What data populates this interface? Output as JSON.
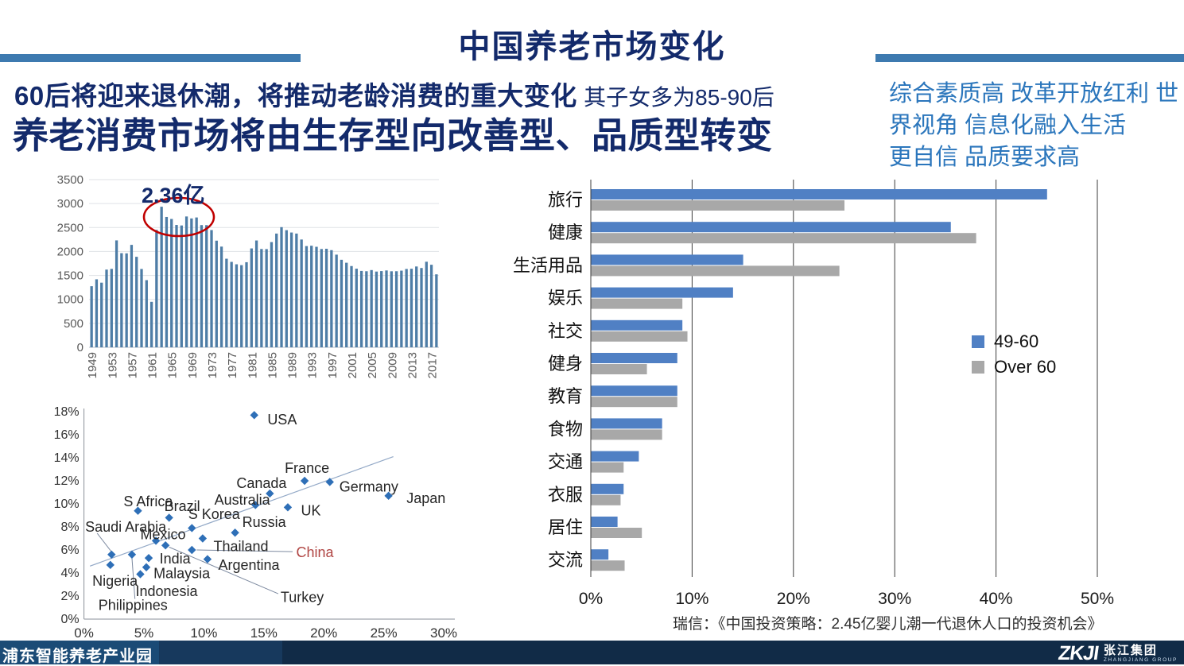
{
  "header": {
    "title": "中国养老市场变化"
  },
  "headline": {
    "bold": "60后将迎来退休潮，将推动老龄消费的重大变化",
    "suffix": "其子女多为85-90后",
    "line2": "养老消费市场将由生存型向改善型、品质型转变"
  },
  "side_note": {
    "lines": [
      "综合素质高 改革开放红利 世",
      "界视角 信息化融入生活",
      "更自信 品质要求高"
    ]
  },
  "source_note": "瑞信：《中国投资策略：2.45亿婴儿潮一代退休人口的投资机会》",
  "footer": {
    "left_text": "浦东智能养老产业园",
    "logo_mark": "ZKJI",
    "logo_cn": "张江集团",
    "logo_en": "ZHANGJIANG GROUP"
  },
  "colors": {
    "headline_navy": "#132a6b",
    "accent_bar_blue": "#3d7ab0",
    "side_note_blue": "#2b76bc",
    "annotation_red": "#c00000"
  },
  "chart_data": [
    {
      "type": "bar",
      "name": "china-annual-births-by-year",
      "start_year": 1949,
      "x_tick_labels": [
        "1949",
        "1953",
        "1957",
        "1961",
        "1965",
        "1969",
        "1973",
        "1977",
        "1981",
        "1985",
        "1989",
        "1993",
        "1997",
        "2001",
        "2005",
        "2009",
        "2013",
        "2017"
      ],
      "ylim": [
        0,
        3500
      ],
      "ytick_step": 500,
      "bar_color": "#4e7da6",
      "grid": true,
      "annotation": {
        "text": "2.36亿",
        "circle_color": "#c00000"
      },
      "values": [
        1275,
        1419,
        1349,
        1622,
        1637,
        2232,
        1965,
        1961,
        2138,
        1889,
        1635,
        1402,
        949,
        2451,
        2934,
        2721,
        2679,
        2554,
        2543,
        2731,
        2690,
        2710,
        2551,
        2550,
        2447,
        2226,
        2102,
        1849,
        1783,
        1733,
        1715,
        1776,
        2064,
        2230,
        2052,
        2050,
        2196,
        2374,
        2508,
        2445,
        2396,
        2374,
        2250,
        2113,
        2120,
        2098,
        2052,
        2057,
        2028,
        1934,
        1827,
        1765,
        1696,
        1641,
        1594,
        1588,
        1612,
        1581,
        1591,
        1604,
        1587,
        1588,
        1600,
        1635,
        1640,
        1687,
        1655,
        1786,
        1723,
        1523
      ]
    },
    {
      "type": "scatter",
      "name": "country-comparison-scatter",
      "xlim": [
        0,
        30
      ],
      "ylim": [
        0,
        18
      ],
      "xtick_step": 5,
      "ytick_step": 2,
      "tick_suffix": "%",
      "grid": false,
      "point_color": "#2e6fb7",
      "highlight_color": "#b04543",
      "trendline": {
        "x1": 0.5,
        "y1": 4.6,
        "x2": 25.8,
        "y2": 14.1
      },
      "points": [
        {
          "name": "USA",
          "x": 14.2,
          "y": 17.7,
          "lx": 15.3,
          "ly": 17.3,
          "anchor": "start"
        },
        {
          "name": "France",
          "x": 18.4,
          "y": 12.0,
          "lx": 18.6,
          "ly": 13.1,
          "anchor": "middle"
        },
        {
          "name": "Canada",
          "x": 15.5,
          "y": 10.9,
          "lx": 16.9,
          "ly": 11.8,
          "anchor": "end"
        },
        {
          "name": "Germany",
          "x": 20.5,
          "y": 11.9,
          "lx": 21.3,
          "ly": 11.5,
          "anchor": "start"
        },
        {
          "name": "Japan",
          "x": 25.4,
          "y": 10.7,
          "lx": 26.9,
          "ly": 10.5,
          "anchor": "start"
        },
        {
          "name": "UK",
          "x": 17.0,
          "y": 9.7,
          "lx": 18.1,
          "ly": 9.4,
          "anchor": "start"
        },
        {
          "name": "Australia",
          "x": 14.3,
          "y": 9.9,
          "lx": 13.2,
          "ly": 10.35,
          "anchor": "middle"
        },
        {
          "name": "S Africa",
          "x": 4.5,
          "y": 9.4,
          "lx": 3.3,
          "ly": 10.2,
          "anchor": "start"
        },
        {
          "name": "Brazil",
          "x": 7.1,
          "y": 8.8,
          "lx": 6.7,
          "ly": 9.8,
          "anchor": "start"
        },
        {
          "name": "S Korea",
          "x": 9.0,
          "y": 7.9,
          "lx": 8.7,
          "ly": 9.1,
          "anchor": "start"
        },
        {
          "name": "Russia",
          "x": 12.6,
          "y": 7.5,
          "lx": 13.2,
          "ly": 8.4,
          "anchor": "start"
        },
        {
          "name": "Mexico",
          "x": 6.0,
          "y": 6.8,
          "lx": 4.7,
          "ly": 7.35,
          "anchor": "start"
        },
        {
          "name": "Thailand",
          "x": 9.9,
          "y": 7.0,
          "lx": 10.8,
          "ly": 6.3,
          "anchor": "start"
        },
        {
          "name": "China",
          "x": 9.0,
          "y": 6.0,
          "lx": 17.7,
          "ly": 5.8,
          "anchor": "start",
          "highlight": true,
          "leader": [
            9.4,
            6.0,
            17.4,
            5.85
          ]
        },
        {
          "name": "Argentina",
          "x": 10.3,
          "y": 5.2,
          "lx": 11.2,
          "ly": 4.7,
          "anchor": "start"
        },
        {
          "name": "India",
          "x": 5.4,
          "y": 5.3,
          "lx": 6.3,
          "ly": 5.25,
          "anchor": "start"
        },
        {
          "name": "Turkey",
          "x": 6.8,
          "y": 6.4,
          "lx": 16.4,
          "ly": 1.9,
          "anchor": "start",
          "leader": [
            7.1,
            6.25,
            16.2,
            2.2
          ]
        },
        {
          "name": "Saudi Arabia",
          "x": 2.3,
          "y": 5.6,
          "lx": 0.1,
          "ly": 8.0,
          "anchor": "start",
          "leader": [
            1.1,
            7.45,
            2.25,
            5.9
          ]
        },
        {
          "name": "Philippines",
          "x": 4.0,
          "y": 5.6,
          "lx": 1.2,
          "ly": 1.2,
          "anchor": "start",
          "leader": [
            4.25,
            1.75,
            4.0,
            5.35
          ]
        },
        {
          "name": "Malaysia",
          "x": 5.2,
          "y": 4.5,
          "lx": 5.8,
          "ly": 3.95,
          "anchor": "start"
        },
        {
          "name": "Nigeria",
          "x": 2.2,
          "y": 4.7,
          "lx": 0.7,
          "ly": 3.3,
          "anchor": "start"
        },
        {
          "name": "Indonesia",
          "x": 4.7,
          "y": 3.9,
          "lx": 4.3,
          "ly": 2.4,
          "anchor": "start"
        }
      ]
    },
    {
      "type": "bar",
      "orientation": "horizontal",
      "name": "elderly-consumption-intentions",
      "categories": [
        "旅行",
        "健康",
        "生活用品",
        "娱乐",
        "社交",
        "健身",
        "教育",
        "食物",
        "交通",
        "衣服",
        "居住",
        "交流"
      ],
      "series": [
        {
          "name": "49-60",
          "color": "#5080c4",
          "values": [
            45,
            35.5,
            15,
            14,
            9,
            8.5,
            8.5,
            7,
            4.7,
            3.2,
            2.6,
            1.7
          ]
        },
        {
          "name": "Over 60",
          "color": "#a8a8a8",
          "values": [
            25,
            38,
            24.5,
            9,
            9.5,
            5.5,
            8.5,
            7,
            3.2,
            2.9,
            5,
            3.3
          ]
        }
      ],
      "xlim": [
        0,
        50
      ],
      "xtick_step": 10,
      "tick_suffix": "%",
      "legend_position": "middle-right",
      "grid": true
    }
  ]
}
